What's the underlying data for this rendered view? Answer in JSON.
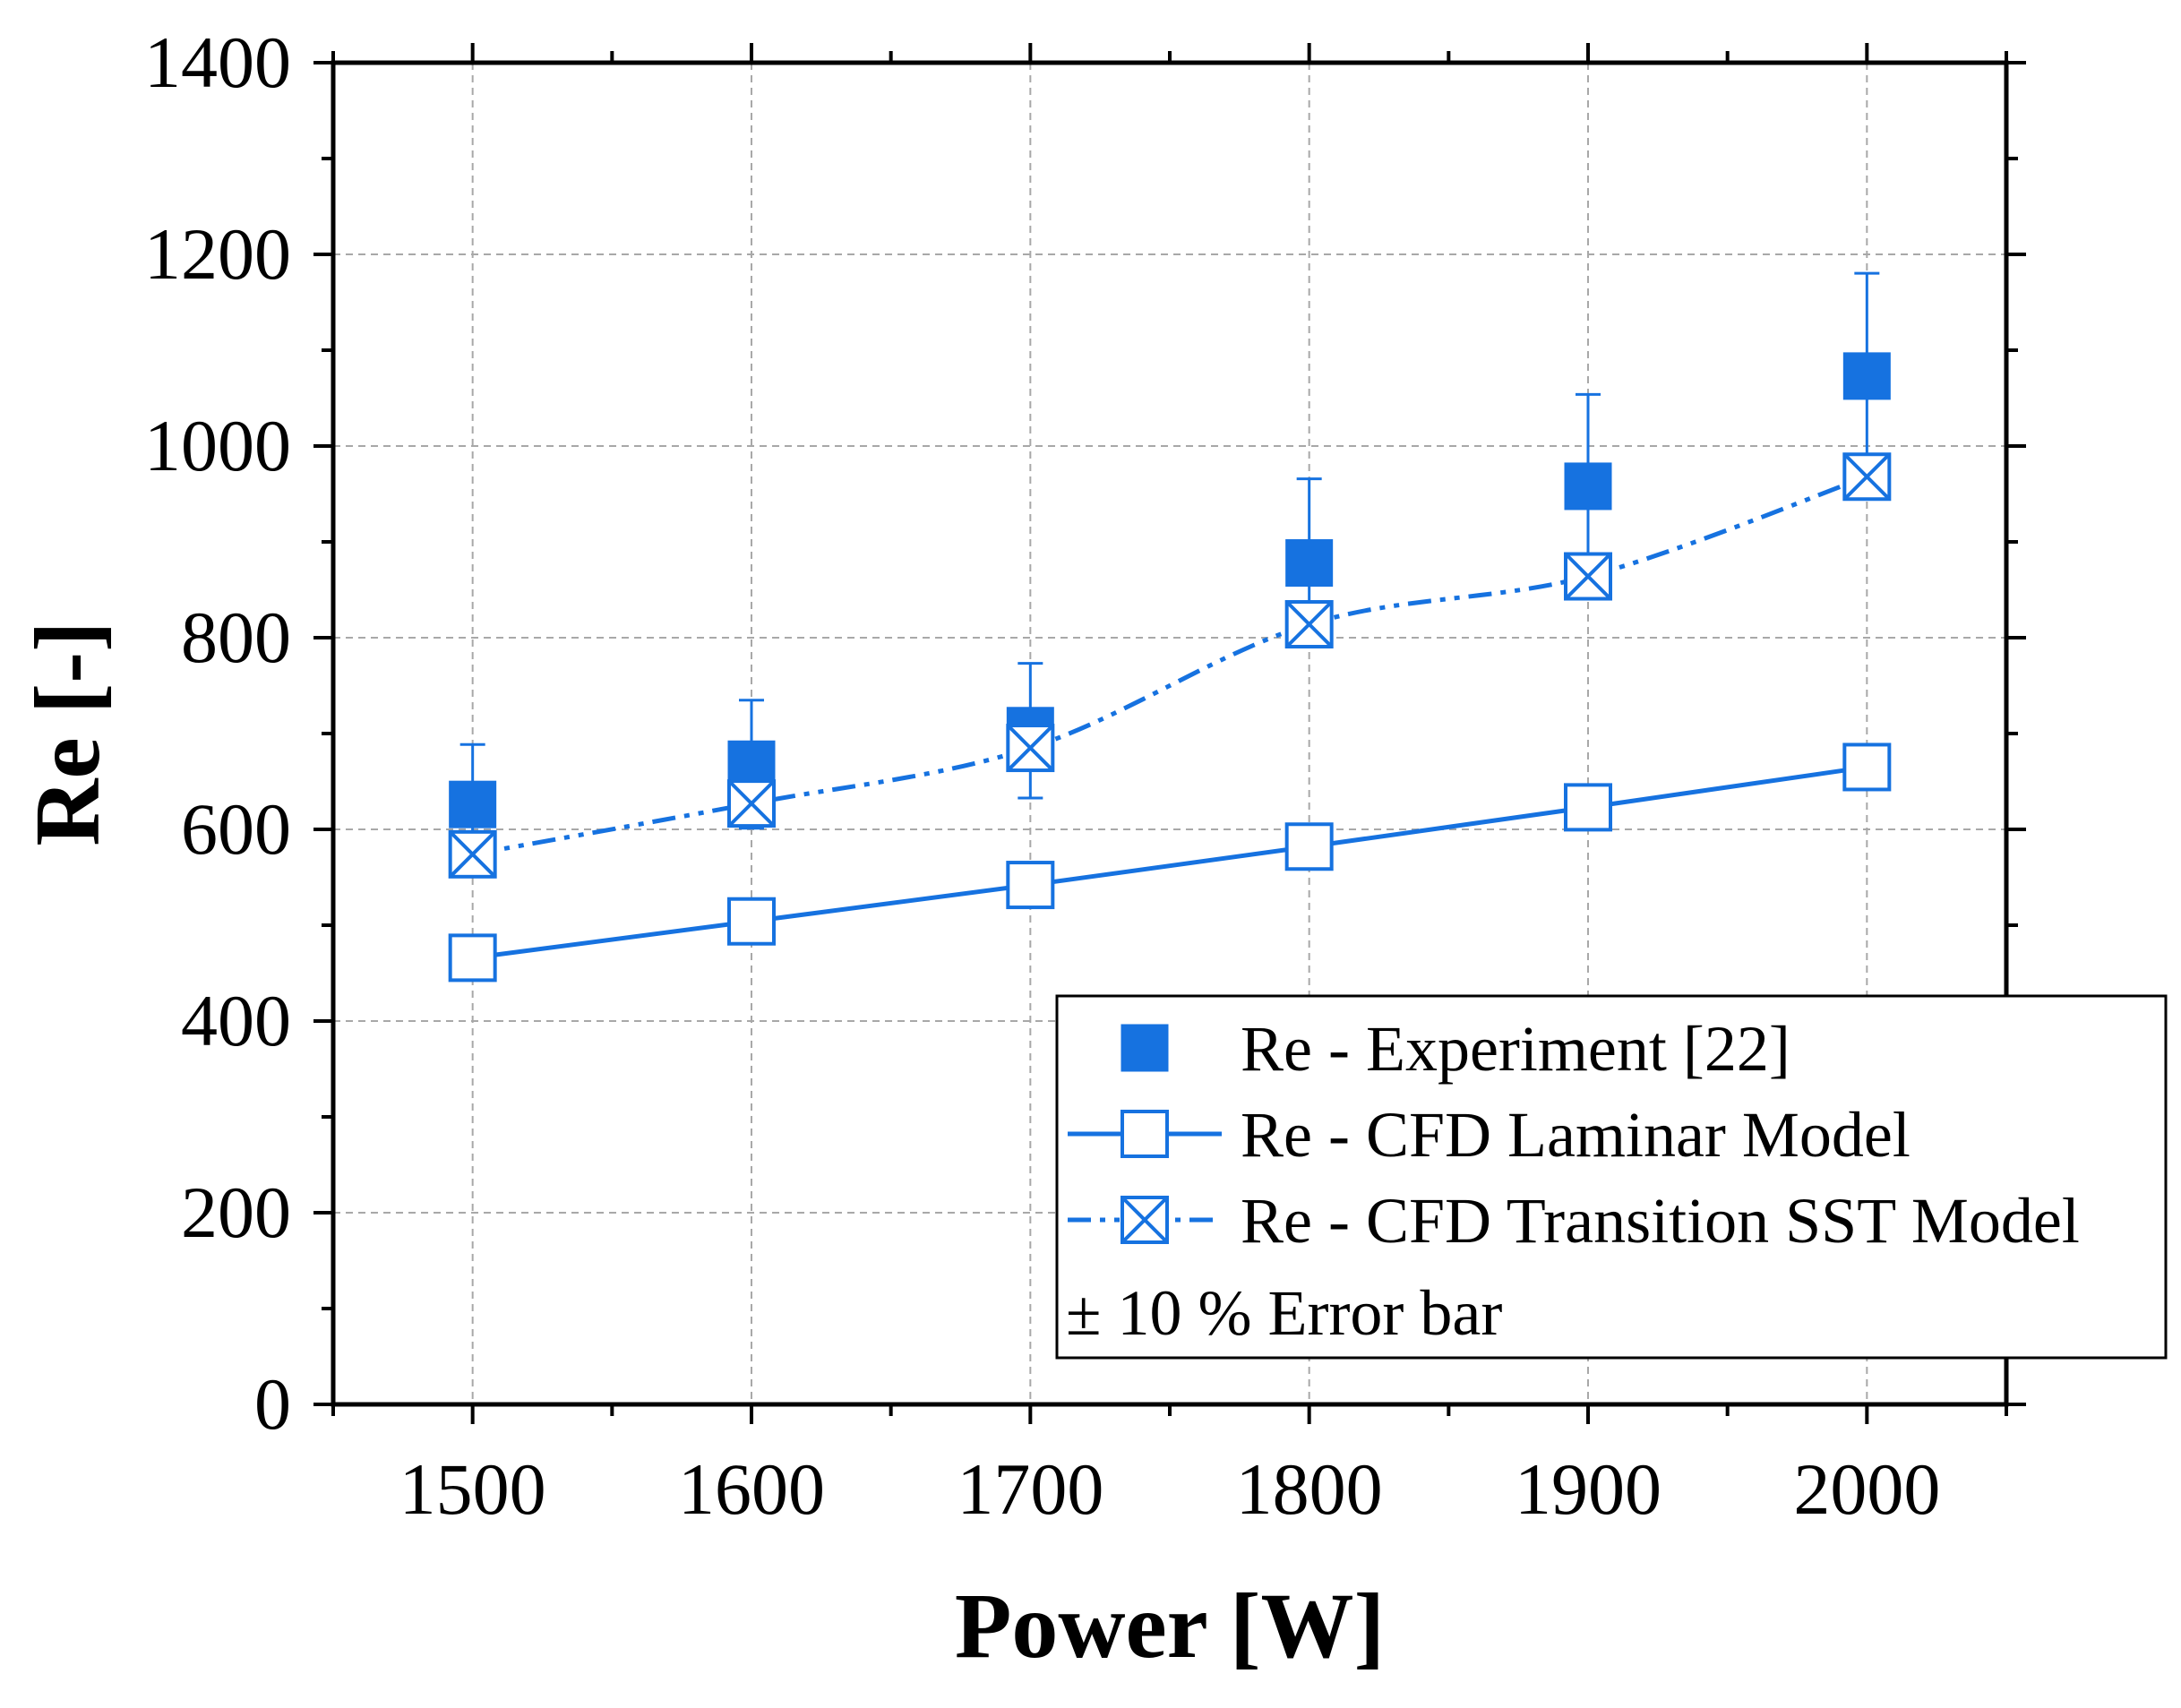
{
  "chart_data": {
    "type": "scatter",
    "title": "",
    "xlabel": "Power [W]",
    "ylabel": "Re [-]",
    "xlim": [
      1450,
      2050
    ],
    "ylim": [
      0,
      1400
    ],
    "xticks": [
      1500,
      1600,
      1700,
      1800,
      1900,
      2000
    ],
    "yticks": [
      0,
      200,
      400,
      600,
      800,
      1000,
      1200,
      1400
    ],
    "grid": true,
    "legend_position": "bottom-right",
    "series": [
      {
        "name": "Re - Experiment [22]",
        "marker": "filled-square",
        "line": "none",
        "error_bars": "+10%",
        "x": [
          1500,
          1600,
          1700,
          1800,
          1900,
          2000
        ],
        "values": [
          626,
          668,
          703,
          878,
          958,
          1073
        ]
      },
      {
        "name": "Re - CFD Laminar Model",
        "marker": "open-square",
        "line": "solid",
        "x": [
          1500,
          1600,
          1700,
          1800,
          1900,
          2000
        ],
        "values": [
          466,
          504,
          542,
          582,
          623,
          665
        ]
      },
      {
        "name": "Re - CFD Transition SST Model",
        "marker": "crossed-square",
        "line": "dash-dot-dot",
        "x": [
          1500,
          1600,
          1700,
          1800,
          1900,
          2000
        ],
        "values": [
          574,
          627,
          685,
          814,
          864,
          968
        ]
      }
    ],
    "annotation": "± 10 % Error bar",
    "color": "#1672e0"
  }
}
